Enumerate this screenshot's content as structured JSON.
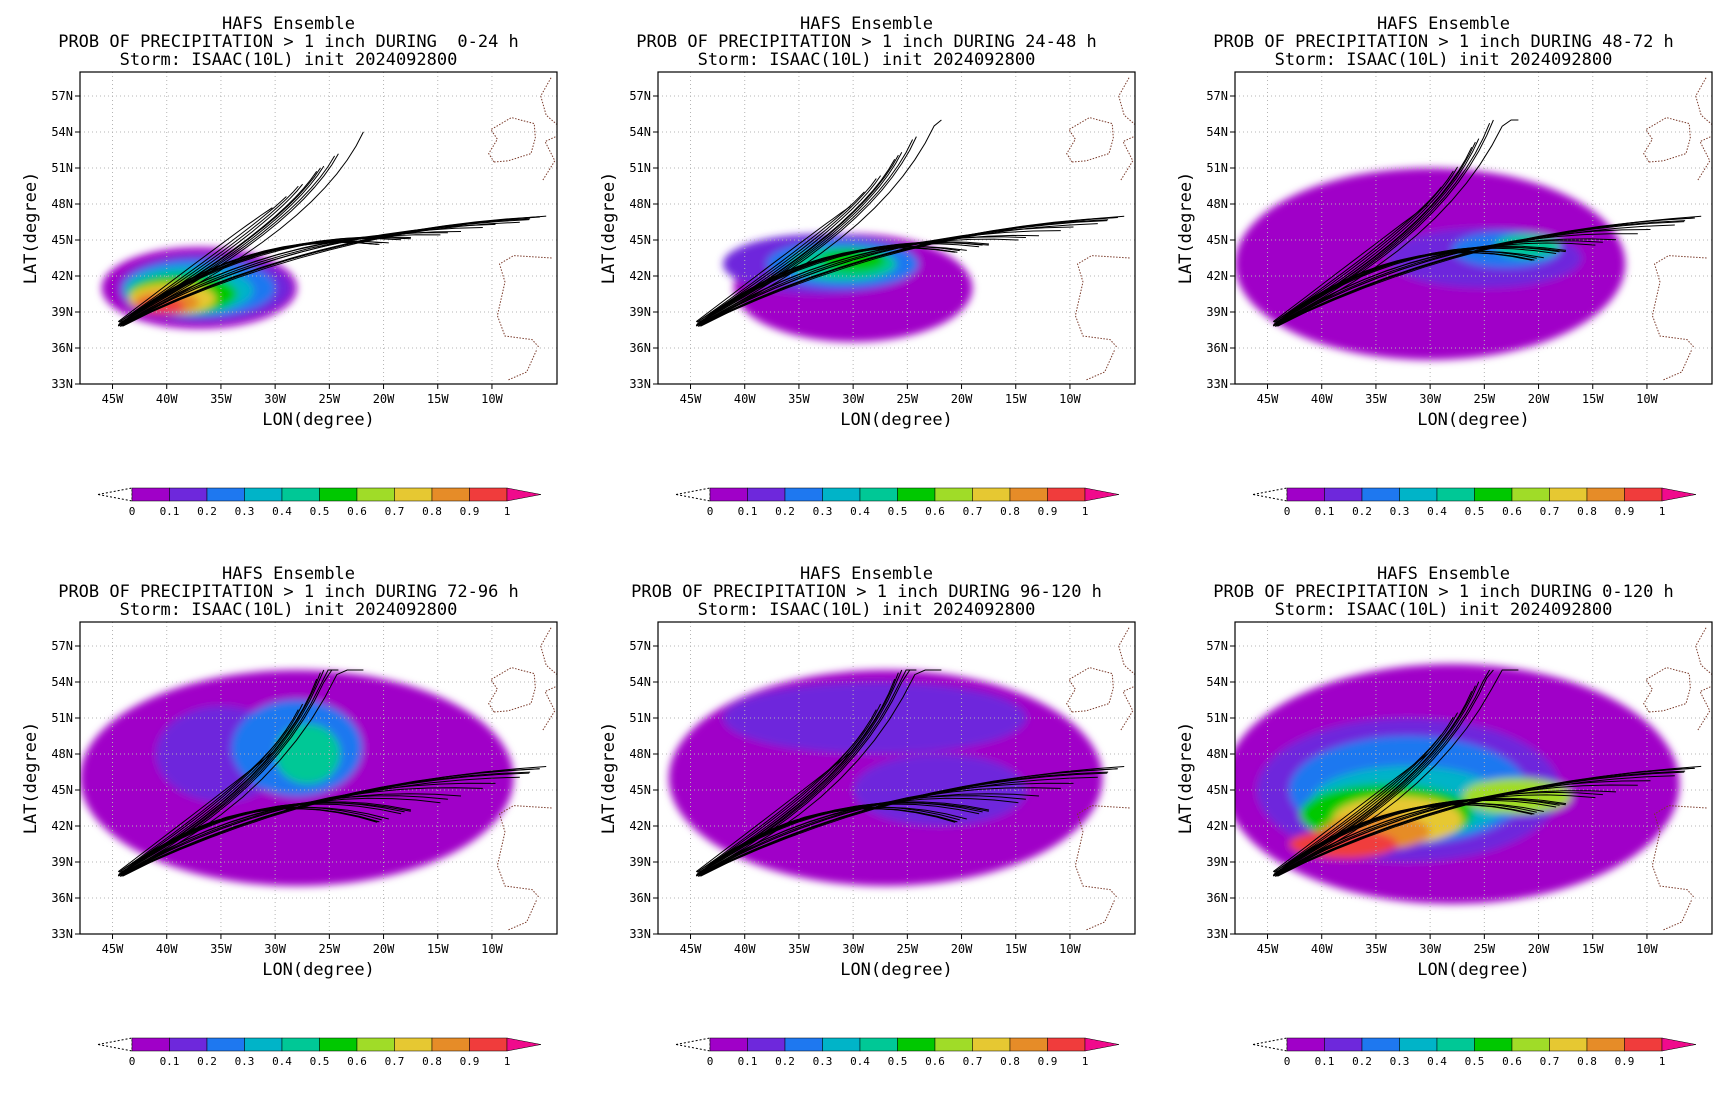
{
  "figure": {
    "model": "HAFS Ensemble",
    "storm_line": "Storm: ISAAC(10L) init 2024092800",
    "panel_titles": [
      "PROB OF PRECIPITATION > 1 inch DURING  0-24 h",
      "PROB OF PRECIPITATION > 1 inch DURING 24-48 h",
      "PROB OF PRECIPITATION > 1 inch DURING 48-72 h",
      "PROB OF PRECIPITATION > 1 inch DURING 72-96 h",
      "PROB OF PRECIPITATION > 1 inch DURING 96-120 h",
      "PROB OF PRECIPITATION > 1 inch DURING 0-120 h"
    ],
    "xlabel": "LON(degree)",
    "ylabel": "LAT(degree)",
    "lon_ticks": [
      "45W",
      "40W",
      "35W",
      "30W",
      "25W",
      "20W",
      "15W",
      "10W"
    ],
    "lat_ticks": [
      "57N",
      "54N",
      "51N",
      "48N",
      "45N",
      "42N",
      "39N",
      "36N",
      "33N"
    ],
    "colorbar_ticks": [
      "0",
      "0.1",
      "0.2",
      "0.3",
      "0.4",
      "0.5",
      "0.6",
      "0.7",
      "0.8",
      "0.9",
      "1"
    ],
    "colorbar_colors": [
      "#a000c8",
      "#6e28dc",
      "#1e78f0",
      "#00b4c8",
      "#00c896",
      "#00c800",
      "#a0dc28",
      "#e6c832",
      "#e68c28",
      "#f03c3c",
      "#f00a8c"
    ]
  },
  "chart_data": [
    {
      "type": "heatmap",
      "panel": "0-24 h",
      "lon_range": [
        -48,
        -4
      ],
      "lat_range": [
        33,
        59
      ],
      "track_spread": 0.35
    },
    {
      "type": "heatmap",
      "panel": "24-48 h",
      "lon_range": [
        -48,
        -4
      ],
      "lat_range": [
        33,
        59
      ],
      "track_spread": 0.45
    },
    {
      "type": "heatmap",
      "panel": "48-72 h",
      "lon_range": [
        -48,
        -4
      ],
      "lat_range": [
        33,
        59
      ],
      "track_spread": 0.55
    },
    {
      "type": "heatmap",
      "panel": "72-96 h",
      "lon_range": [
        -48,
        -4
      ],
      "lat_range": [
        33,
        59
      ],
      "track_spread": 0.7
    },
    {
      "type": "heatmap",
      "panel": "96-120 h",
      "lon_range": [
        -48,
        -4
      ],
      "lat_range": [
        33,
        59
      ],
      "track_spread": 0.7
    },
    {
      "type": "heatmap",
      "panel": "0-120 h",
      "lon_range": [
        -48,
        -4
      ],
      "lat_range": [
        33,
        59
      ],
      "track_spread": 0.6
    }
  ]
}
